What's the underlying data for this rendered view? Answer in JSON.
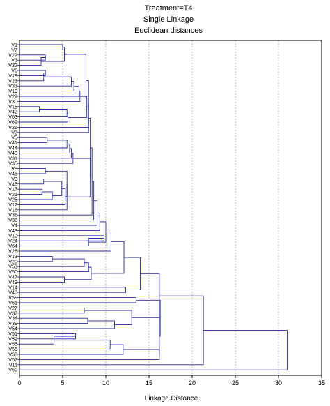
{
  "chart_data": {
    "type": "dendrogram",
    "title": "Treatment=T4",
    "subtitle_lines": [
      "Single Linkage",
      "Euclidean distances"
    ],
    "xlabel": "Linkage Distance",
    "xlim": [
      0,
      35
    ],
    "xticks": [
      0,
      5,
      10,
      15,
      20,
      25,
      30,
      35
    ],
    "grid": true,
    "line_color": "#2a2a9a",
    "leaves": [
      "V1",
      "V7",
      "V22",
      "V3",
      "V32",
      "V6",
      "V18",
      "V23",
      "V33",
      "V19",
      "V29",
      "V30",
      "V15",
      "V42",
      "V63",
      "V62",
      "V26",
      "V2",
      "V5",
      "V41",
      "V44",
      "V48",
      "V31",
      "V35",
      "V8",
      "V46",
      "V9",
      "V45",
      "V17",
      "V21",
      "V25",
      "V12",
      "V16",
      "V36",
      "V38",
      "V4",
      "V43",
      "V10",
      "V24",
      "V64",
      "V28",
      "V13",
      "V20",
      "V53",
      "V50",
      "V47",
      "V49",
      "V14",
      "V40",
      "V59",
      "V61",
      "V27",
      "V37",
      "V34",
      "V39",
      "V54",
      "V51",
      "V52",
      "V55",
      "V56",
      "V58",
      "V57",
      "V11",
      "V60"
    ],
    "merges": [
      [
        "V1",
        "V7",
        5.0
      ],
      [
        "V22",
        "V3",
        3.0
      ],
      [
        "V22",
        "V32",
        2.5
      ],
      [
        "V1",
        "V22",
        5.2
      ],
      [
        "V6",
        "V18",
        3.0
      ],
      [
        "V6",
        "V23",
        2.8
      ],
      [
        "V6",
        "V33",
        6.0
      ],
      [
        "V6",
        "V19",
        6.3
      ],
      [
        "V6",
        "V29",
        6.9
      ],
      [
        "V6",
        "V30",
        7.0
      ],
      [
        "V15",
        "V42",
        2.3
      ],
      [
        "V15",
        "V63",
        5.5
      ],
      [
        "V15",
        "V62",
        5.6
      ],
      [
        "V6",
        "V15",
        7.8
      ],
      [
        "V1",
        "V6",
        7.7
      ],
      [
        "V1",
        "V26",
        8.0
      ],
      [
        "V1",
        "V2",
        8.0
      ],
      [
        "V5",
        "V41",
        3.2
      ],
      [
        "V5",
        "V44",
        5.5
      ],
      [
        "V5",
        "V48",
        5.8
      ],
      [
        "V5",
        "V31",
        6.0
      ],
      [
        "V5",
        "V35",
        6.2
      ],
      [
        "V8",
        "V46",
        3.0
      ],
      [
        "V9",
        "V45",
        2.8
      ],
      [
        "V17",
        "V21",
        2.6
      ],
      [
        "V17",
        "V25",
        3.8
      ],
      [
        "V9",
        "V17",
        4.9
      ],
      [
        "V9",
        "V12",
        5.3
      ],
      [
        "V8",
        "V9",
        5.5
      ],
      [
        "V8",
        "V16",
        5.5
      ],
      [
        "V5",
        "V8",
        8.2
      ],
      [
        "V1",
        "V5",
        8.2
      ],
      [
        "V1",
        "V36",
        8.4
      ],
      [
        "V1",
        "V38",
        8.6
      ],
      [
        "V1",
        "V4",
        9.0
      ],
      [
        "V1",
        "V43",
        9.3
      ],
      [
        "V10",
        "V24",
        9.8
      ],
      [
        "V10",
        "V64",
        8.0
      ],
      [
        "V1",
        "V10",
        10.0
      ],
      [
        "V1",
        "V28",
        10.6
      ],
      [
        "V13",
        "V20",
        3.8
      ],
      [
        "V13",
        "V53",
        7.5
      ],
      [
        "V13",
        "V50",
        8.0
      ],
      [
        "V47",
        "V49",
        5.2
      ],
      [
        "V13",
        "V47",
        8.3
      ],
      [
        "V1",
        "V13",
        12.1
      ],
      [
        "V14",
        "V40",
        12.3
      ],
      [
        "V1",
        "V14",
        14.0
      ],
      [
        "V59",
        "V61",
        13.5
      ],
      [
        "V27",
        "V37",
        7.5
      ],
      [
        "V34",
        "V39",
        7.9
      ],
      [
        "V34",
        "V54",
        11.0
      ],
      [
        "V27",
        "V34",
        13.0
      ],
      [
        "V51",
        "V52",
        6.5
      ],
      [
        "V51",
        "V55",
        4.0
      ],
      [
        "V51",
        "V56",
        10.5
      ],
      [
        "V51",
        "V58",
        12.0
      ],
      [
        "V51",
        "V57",
        16.2
      ],
      [
        "V27",
        "V51",
        16.2
      ],
      [
        "V59",
        "V27",
        16.3
      ],
      [
        "V1",
        "V59",
        16.2
      ],
      [
        "V1",
        "V11",
        21.3
      ],
      [
        "V1",
        "V60",
        31.0
      ]
    ]
  }
}
